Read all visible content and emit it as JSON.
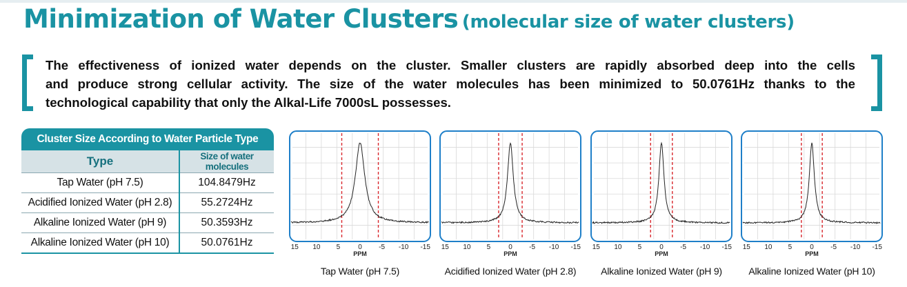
{
  "title": {
    "main": "Minimization of Water Clusters",
    "sub": "(molecular size of water clusters)"
  },
  "intro": {
    "line1": "The effectiveness of ionized water depends on the cluster. Smaller clusters are rapidly absorbed deep into the cells",
    "line2": "and produce strong cellular activity. The size of the water molecules has been minimized to 50.0761Hz thanks to the",
    "line3": "technological capability that only the Alkal-Life 7000sL possesses."
  },
  "table": {
    "caption": "Cluster Size According to Water Particle Type",
    "headers": {
      "type": "Type",
      "size": "Size of water molecules"
    },
    "rows": [
      {
        "type": "Tap Water (pH 7.5)",
        "size": "104.8479Hz"
      },
      {
        "type": "Acidified Ionized Water (pH 2.8)",
        "size": "55.2724Hz"
      },
      {
        "type": "Alkaline Ionized Water (pH 9)",
        "size": "50.3593Hz"
      },
      {
        "type": "Alkaline Ionized Water (pH 10)",
        "size": "50.0761Hz"
      }
    ]
  },
  "chart_data": [
    {
      "type": "line",
      "title": "Tap Water (pH 7.5)",
      "xlabel": "PPM",
      "x_ticks": [
        15,
        10,
        5,
        0,
        -5,
        -10,
        -15
      ],
      "xlim": [
        16,
        -16
      ],
      "peak_center_ppm": 0,
      "peak_width_ppm": 1.3,
      "dashed_markers_ppm": [
        4.2,
        -4.2
      ],
      "colors": {
        "frame": "#1e7fc8",
        "marker": "#d9262c",
        "trace": "#222222"
      }
    },
    {
      "type": "line",
      "title": "Acidified Ionized Water (pH 2.8)",
      "xlabel": "PPM",
      "x_ticks": [
        15,
        10,
        5,
        0,
        -5,
        -10,
        -15
      ],
      "xlim": [
        16,
        -16
      ],
      "peak_center_ppm": 0,
      "peak_width_ppm": 0.8,
      "dashed_markers_ppm": [
        2.7,
        -2.7
      ],
      "colors": {
        "frame": "#1e7fc8",
        "marker": "#d9262c",
        "trace": "#222222"
      }
    },
    {
      "type": "line",
      "title": "Alkaline Ionized Water (pH 9)",
      "xlabel": "PPM",
      "x_ticks": [
        15,
        10,
        5,
        0,
        -5,
        -10,
        -15
      ],
      "xlim": [
        16,
        -16
      ],
      "peak_center_ppm": 0,
      "peak_width_ppm": 0.7,
      "dashed_markers_ppm": [
        2.5,
        -2.5
      ],
      "colors": {
        "frame": "#1e7fc8",
        "marker": "#d9262c",
        "trace": "#222222"
      }
    },
    {
      "type": "line",
      "title": "Alkaline Ionized Water (pH 10)",
      "xlabel": "PPM",
      "x_ticks": [
        15,
        10,
        5,
        0,
        -5,
        -10,
        -15
      ],
      "xlim": [
        16,
        -16
      ],
      "peak_center_ppm": 0,
      "peak_width_ppm": 0.7,
      "dashed_markers_ppm": [
        2.4,
        -2.4
      ],
      "colors": {
        "frame": "#1e7fc8",
        "marker": "#d9262c",
        "trace": "#222222"
      }
    }
  ]
}
